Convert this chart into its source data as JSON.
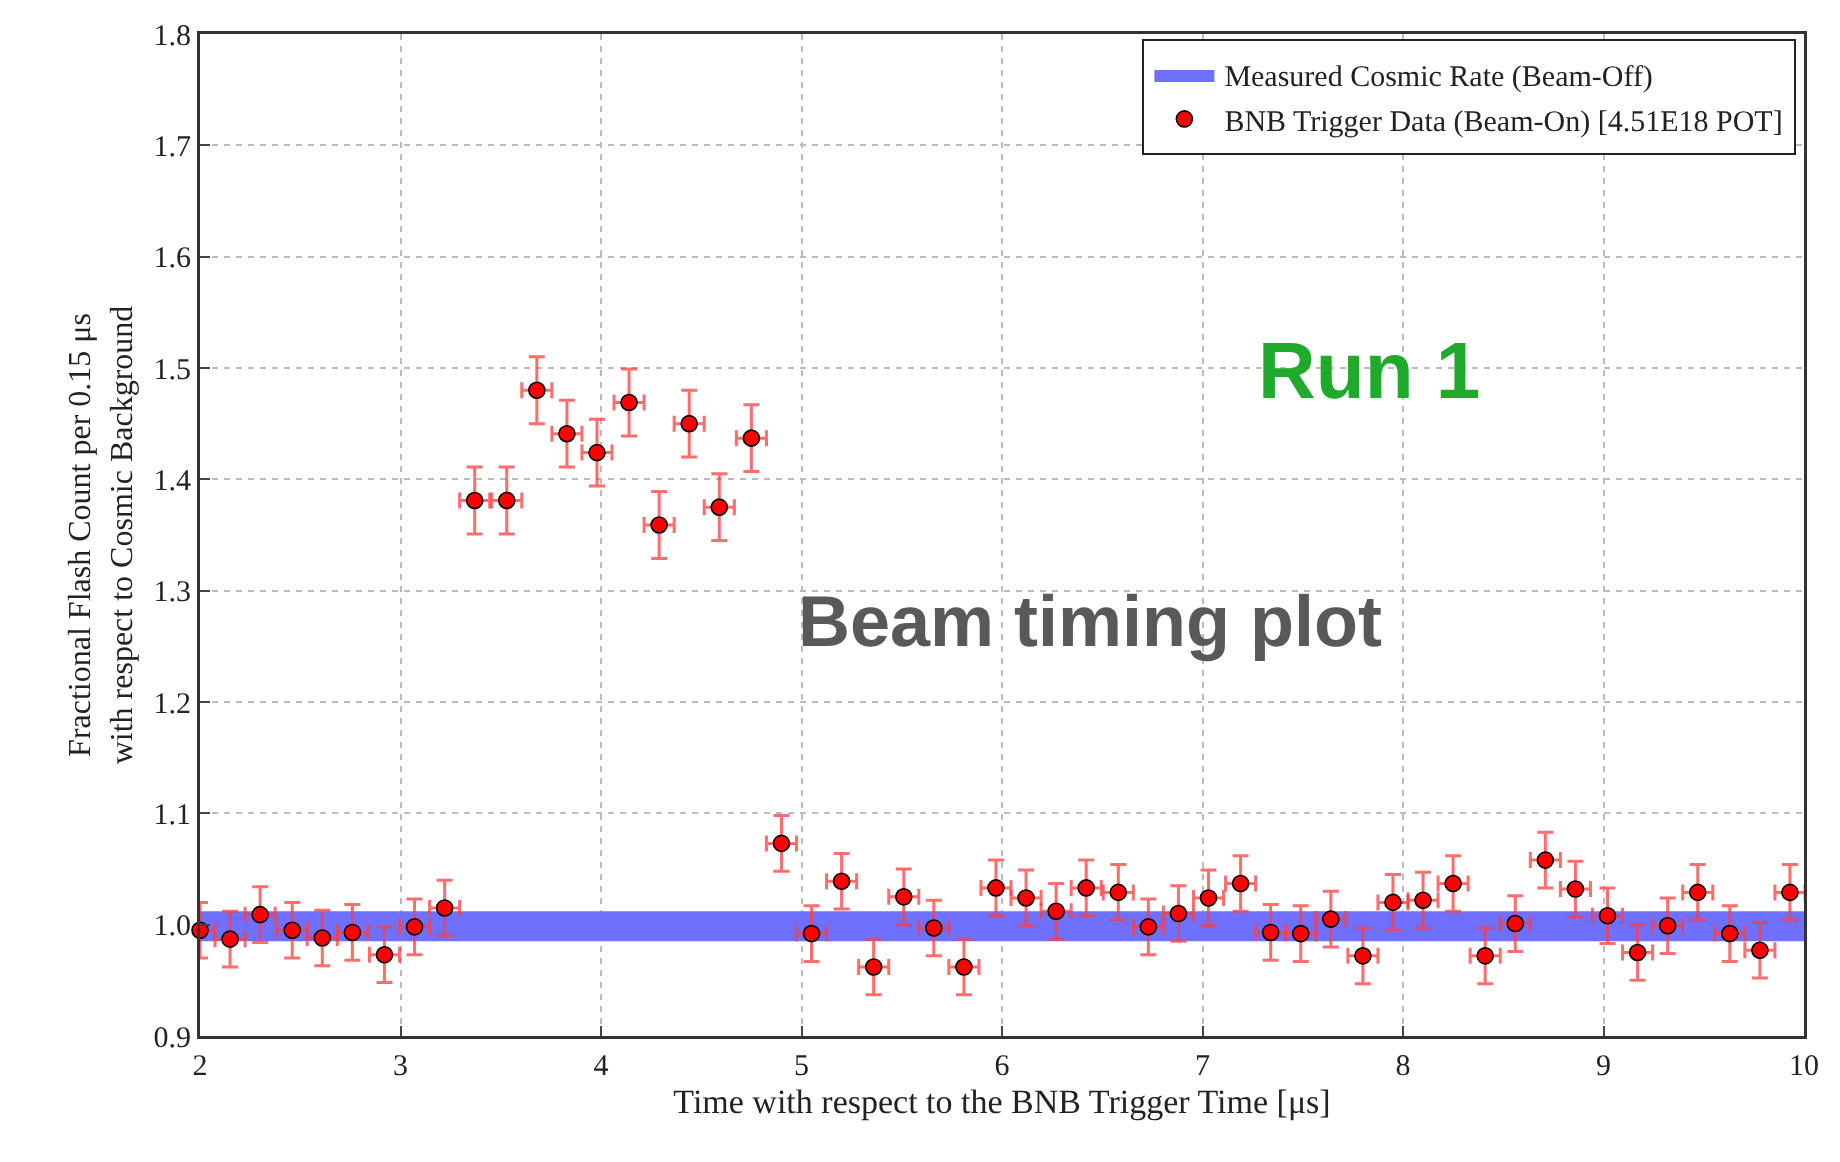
{
  "chart_data": {
    "type": "scatter",
    "xlabel": "Time with respect to the BNB Trigger Time [μs]",
    "ylabel": "Fractional Flash Count per 0.15 μs\nwith respect to Cosmic Background",
    "x": [
      2.0,
      2.15,
      2.3,
      2.46,
      2.61,
      2.76,
      2.92,
      3.07,
      3.22,
      3.37,
      3.53,
      3.68,
      3.83,
      3.98,
      4.14,
      4.29,
      4.44,
      4.59,
      4.75,
      4.9,
      5.05,
      5.2,
      5.36,
      5.51,
      5.66,
      5.81,
      5.97,
      6.12,
      6.27,
      6.42,
      6.58,
      6.73,
      6.88,
      7.03,
      7.19,
      7.34,
      7.49,
      7.64,
      7.8,
      7.95,
      8.1,
      8.25,
      8.41,
      8.56,
      8.71,
      8.86,
      9.02,
      9.17,
      9.32,
      9.47,
      9.63,
      9.78,
      9.93
    ],
    "series": [
      {
        "name": "BNB Trigger Data (Beam-On) [4.51E18 POT]",
        "color": "#ff0000",
        "values": [
          0.995,
          0.987,
          1.009,
          0.995,
          0.988,
          0.993,
          0.973,
          0.998,
          1.015,
          1.381,
          1.381,
          1.48,
          1.441,
          1.424,
          1.469,
          1.359,
          1.45,
          1.375,
          1.437,
          1.073,
          0.992,
          1.039,
          0.962,
          1.025,
          0.997,
          0.962,
          1.033,
          1.024,
          1.012,
          1.033,
          1.029,
          0.998,
          1.01,
          1.024,
          1.037,
          0.993,
          0.992,
          1.005,
          0.972,
          1.02,
          1.022,
          1.037,
          0.972,
          1.001,
          1.058,
          1.032,
          1.008,
          0.975,
          0.999,
          1.029,
          0.992,
          0.977,
          1.029
        ],
        "errors": [
          0.025,
          0.025,
          0.025,
          0.025,
          0.025,
          0.025,
          0.025,
          0.025,
          0.025,
          0.03,
          0.03,
          0.03,
          0.03,
          0.03,
          0.03,
          0.03,
          0.03,
          0.03,
          0.03,
          0.025,
          0.025,
          0.025,
          0.025,
          0.025,
          0.025,
          0.025,
          0.025,
          0.025,
          0.025,
          0.025,
          0.025,
          0.025,
          0.025,
          0.025,
          0.025,
          0.025,
          0.025,
          0.025,
          0.025,
          0.025,
          0.025,
          0.025,
          0.025,
          0.025,
          0.025,
          0.025,
          0.025,
          0.025,
          0.025,
          0.025,
          0.025,
          0.025,
          0.025
        ],
        "xerrors": [
          0.075,
          0.075,
          0.075,
          0.075,
          0.075,
          0.075,
          0.075,
          0.075,
          0.075,
          0.075,
          0.075,
          0.075,
          0.075,
          0.075,
          0.075,
          0.075,
          0.075,
          0.075,
          0.075,
          0.075,
          0.075,
          0.075,
          0.075,
          0.075,
          0.075,
          0.075,
          0.075,
          0.075,
          0.075,
          0.075,
          0.075,
          0.075,
          0.075,
          0.075,
          0.075,
          0.075,
          0.075,
          0.075,
          0.075,
          0.075,
          0.075,
          0.075,
          0.075,
          0.075,
          0.075,
          0.075,
          0.075,
          0.075,
          0.075,
          0.075,
          0.075,
          0.075,
          0.075
        ]
      }
    ],
    "bands": [
      {
        "axis": "y",
        "from": 0.985,
        "to": 1.012,
        "label": "Measured Cosmic Rate (Beam-Off)",
        "color": "#7070ff"
      }
    ],
    "annotations": [
      "Run 1",
      "Beam timing plot"
    ],
    "xlim": [
      2,
      10
    ],
    "xticks": [
      2,
      3,
      4,
      5,
      6,
      7,
      8,
      9,
      10
    ],
    "ylim": [
      0.9,
      1.8
    ],
    "yticks": [
      {
        "value": 0.9,
        "label": "0.9"
      },
      {
        "value": 1.0,
        "label": "1.0"
      },
      {
        "value": 1.1,
        "label": "1.1"
      },
      {
        "value": 1.2,
        "label": "1.2"
      },
      {
        "value": 1.3,
        "label": "1.3"
      },
      {
        "value": 1.4,
        "label": "1.4"
      },
      {
        "value": 1.5,
        "label": "1.5"
      },
      {
        "value": 1.6,
        "label": "1.6"
      },
      {
        "value": 1.7,
        "label": "1.7"
      },
      {
        "value": 1.8,
        "label": "1.8"
      }
    ],
    "grid": true,
    "legend": "top right",
    "marker": "circle"
  }
}
